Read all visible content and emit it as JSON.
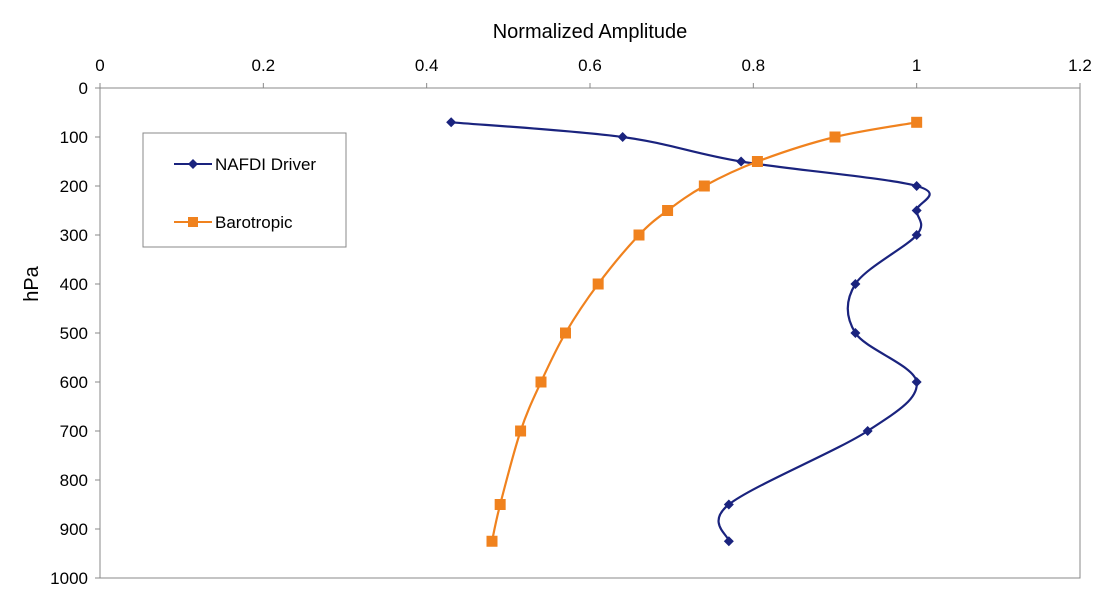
{
  "chart_data": {
    "type": "line",
    "title": "",
    "xlabel": "Normalized Amplitude",
    "ylabel": "hPa",
    "xlim": [
      0,
      1.2
    ],
    "ylim": [
      0,
      1000
    ],
    "y_inverted": true,
    "x_axis_position": "top",
    "x_ticks": [
      0,
      0.2,
      0.4,
      0.6,
      0.8,
      1,
      1.2
    ],
    "x_tick_labels": [
      "0",
      "0.2",
      "0.4",
      "0.6",
      "0.8",
      "1",
      "1.2"
    ],
    "y_ticks": [
      0,
      100,
      200,
      300,
      400,
      500,
      600,
      700,
      800,
      900,
      1000
    ],
    "y_tick_labels": [
      "0",
      "100",
      "200",
      "300",
      "400",
      "500",
      "600",
      "700",
      "800",
      "900",
      "1000"
    ],
    "grid": false,
    "legend_position": "top-left",
    "series": [
      {
        "name": "NAFDI Driver",
        "color": "#1a237e",
        "marker": "diamond",
        "points": [
          [
            0.43,
            70
          ],
          [
            0.64,
            100
          ],
          [
            0.785,
            150
          ],
          [
            1.0,
            200
          ],
          [
            1.0,
            250
          ],
          [
            1.0,
            300
          ],
          [
            0.925,
            400
          ],
          [
            0.925,
            500
          ],
          [
            1.0,
            600
          ],
          [
            0.94,
            700
          ],
          [
            0.77,
            850
          ],
          [
            0.77,
            925
          ]
        ]
      },
      {
        "name": "Barotropic",
        "color": "#f0821e",
        "marker": "square",
        "points": [
          [
            1.0,
            70
          ],
          [
            0.9,
            100
          ],
          [
            0.805,
            150
          ],
          [
            0.74,
            200
          ],
          [
            0.695,
            250
          ],
          [
            0.66,
            300
          ],
          [
            0.61,
            400
          ],
          [
            0.57,
            500
          ],
          [
            0.54,
            600
          ],
          [
            0.515,
            700
          ],
          [
            0.49,
            850
          ],
          [
            0.48,
            925
          ]
        ]
      }
    ]
  }
}
